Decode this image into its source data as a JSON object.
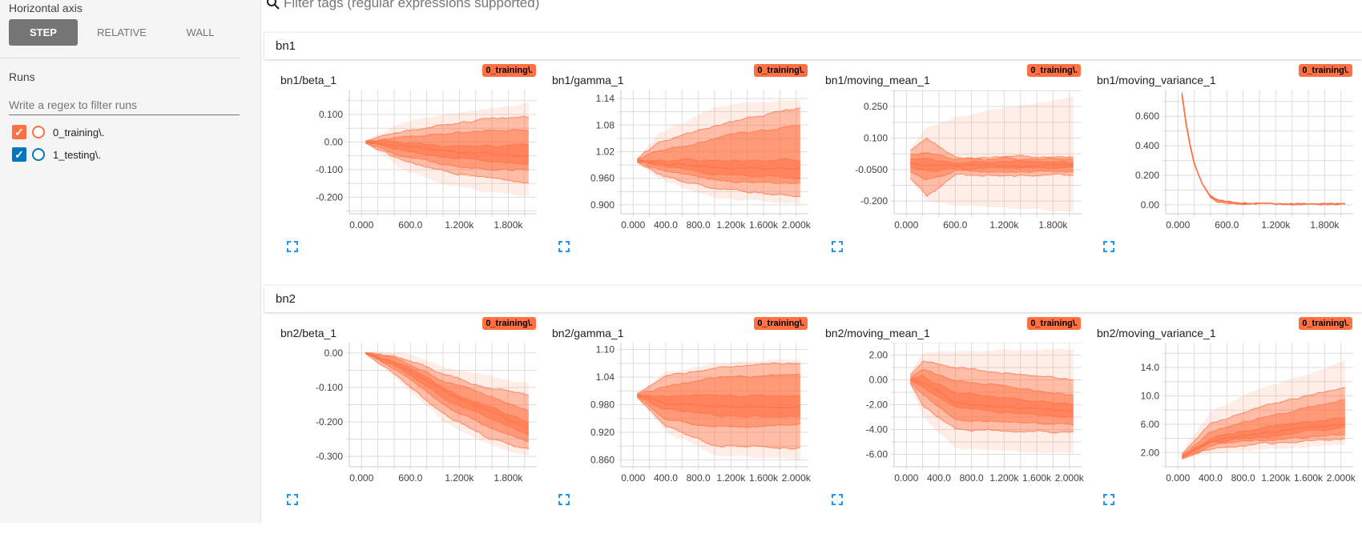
{
  "sidebar": {
    "horizontal_axis_label": "Horizontal axis",
    "axis_buttons": [
      "STEP",
      "RELATIVE",
      "WALL"
    ],
    "active_axis": "STEP",
    "runs_label": "Runs",
    "run_filter_placeholder": "Write a regex to filter runs",
    "runs": [
      {
        "name": "0_training\\.",
        "color": "#ff7043",
        "checked": true
      },
      {
        "name": "1_testing\\.",
        "color": "#0277bd",
        "checked": true
      }
    ]
  },
  "filter": {
    "placeholder": "Filter tags (regular expressions supported)",
    "icon": "search-icon"
  },
  "colors": {
    "series": "#ff7043",
    "expand_icon": "#2196f3"
  },
  "sections": [
    {
      "name": "bn1",
      "charts": [
        {
          "title": "bn1/beta_1",
          "run": "0_training\\.",
          "type": "distribution",
          "xlim": [
            -150,
            2150
          ],
          "ylim": [
            -0.26,
            0.19
          ],
          "yticks": [
            0.1,
            0,
            -0.1,
            -0.2
          ],
          "ytick_labels": [
            "0.100",
            "0.00",
            "-0.100",
            "-0.200"
          ],
          "xticks": [
            0,
            600,
            1200,
            1800
          ],
          "xtick_labels": [
            "0.000",
            "600.0",
            "1.200k",
            "1.800k"
          ],
          "steps": [
            50,
            500,
            1000,
            1500,
            2050
          ],
          "percentiles": [
            [
              -0.006,
              -0.004,
              -0.003,
              -0.001,
              0,
              0.001,
              0.003,
              0.004,
              0.006
            ],
            [
              -0.1,
              -0.07,
              -0.05,
              -0.03,
              -0.015,
              0,
              0.02,
              0.04,
              0.07
            ],
            [
              -0.15,
              -0.11,
              -0.08,
              -0.055,
              -0.03,
              -0.01,
              0.03,
              0.06,
              0.1
            ],
            [
              -0.18,
              -0.13,
              -0.1,
              -0.07,
              -0.04,
              -0.015,
              0.04,
              0.08,
              0.12
            ],
            [
              -0.2,
              -0.15,
              -0.1,
              -0.08,
              -0.05,
              -0.01,
              0.04,
              0.09,
              0.14
            ]
          ]
        },
        {
          "title": "bn1/gamma_1",
          "run": "0_training\\.",
          "type": "distribution",
          "xlim": [
            -150,
            2150
          ],
          "ylim": [
            0.88,
            1.16
          ],
          "yticks": [
            1.14,
            1.08,
            1.02,
            0.96,
            0.9
          ],
          "ytick_labels": [
            "1.14",
            "1.08",
            "1.02",
            "0.960",
            "0.900"
          ],
          "xticks": [
            0,
            400,
            800,
            1200,
            1600,
            2000
          ],
          "xtick_labels": [
            "0.000",
            "400.0",
            "800.0",
            "1.200k",
            "1.600k",
            "2.000k"
          ],
          "steps": [
            50,
            300,
            1000,
            2050
          ],
          "percentiles": [
            [
              0.995,
              0.996,
              0.997,
              0.999,
              1,
              1.001,
              1.003,
              1.004,
              1.005
            ],
            [
              0.96,
              0.97,
              0.98,
              0.99,
              0.995,
              1,
              1.02,
              1.04,
              1.06
            ],
            [
              0.915,
              0.935,
              0.955,
              0.97,
              0.985,
              1,
              1.05,
              1.08,
              1.12
            ],
            [
              0.9,
              0.92,
              0.95,
              0.96,
              0.98,
              1,
              1.08,
              1.12,
              1.14
            ]
          ]
        },
        {
          "title": "bn1/moving_mean_1",
          "run": "0_training\\.",
          "type": "distribution",
          "xlim": [
            -150,
            2150
          ],
          "ylim": [
            -0.26,
            0.33
          ],
          "yticks": [
            0.25,
            0.1,
            -0.05,
            -0.2
          ],
          "ytick_labels": [
            "0.250",
            "0.100",
            "-0.0500",
            "-0.200"
          ],
          "xticks": [
            0,
            600,
            1200,
            1800
          ],
          "xtick_labels": [
            "0.000",
            "600.0",
            "1.200k",
            "1.800k"
          ],
          "steps": [
            50,
            250,
            600,
            2050
          ],
          "percentiles": [
            [
              -0.1,
              -0.09,
              -0.06,
              -0.04,
              -0.02,
              0,
              0.02,
              0.04,
              0.05
            ],
            [
              -0.2,
              -0.18,
              -0.1,
              -0.06,
              -0.03,
              0,
              0.03,
              0.1,
              0.15
            ],
            [
              -0.22,
              -0.08,
              -0.06,
              -0.045,
              -0.03,
              -0.015,
              0,
              0.01,
              0.2
            ],
            [
              -0.25,
              -0.08,
              -0.06,
              -0.045,
              -0.03,
              -0.015,
              0,
              0.01,
              0.3
            ]
          ]
        },
        {
          "title": "bn1/moving_variance_1",
          "run": "0_training\\.",
          "type": "distribution",
          "xlim": [
            -150,
            2150
          ],
          "ylim": [
            -0.06,
            0.78
          ],
          "yticks": [
            0.6,
            0.4,
            0.2,
            0
          ],
          "ytick_labels": [
            "0.600",
            "0.400",
            "0.200",
            "0.00"
          ],
          "xticks": [
            0,
            600,
            1200,
            1800
          ],
          "xtick_labels": [
            "0.000",
            "600.0",
            "1.200k",
            "1.800k"
          ],
          "steps": [
            50,
            100,
            150,
            200,
            300,
            400,
            500,
            700,
            2050
          ],
          "percentiles": [
            0.75,
            0.55,
            0.4,
            0.28,
            0.13,
            0.05,
            0.02,
            0.005,
            0.003
          ]
        }
      ]
    },
    {
      "name": "bn2",
      "charts": [
        {
          "title": "bn2/beta_1",
          "run": "0_training\\.",
          "type": "distribution",
          "xlim": [
            -150,
            2150
          ],
          "ylim": [
            -0.33,
            0.03
          ],
          "yticks": [
            0,
            -0.1,
            -0.2,
            -0.3
          ],
          "ytick_labels": [
            "0.00",
            "-0.100",
            "-0.200",
            "-0.300"
          ],
          "xticks": [
            0,
            600,
            1200,
            1800
          ],
          "xtick_labels": [
            "0.000",
            "600.0",
            "1.200k",
            "1.800k"
          ],
          "steps": [
            50,
            500,
            1000,
            1500,
            2050
          ],
          "percentiles": [
            [
              -0.003,
              -0.002,
              -0.001,
              0,
              0,
              0,
              0.001,
              0.002,
              0.003
            ],
            [
              -0.09,
              -0.08,
              -0.06,
              -0.05,
              -0.04,
              -0.03,
              -0.02,
              -0.015,
              0
            ],
            [
              -0.2,
              -0.18,
              -0.15,
              -0.13,
              -0.11,
              -0.1,
              -0.08,
              -0.06,
              -0.04
            ],
            [
              -0.26,
              -0.24,
              -0.21,
              -0.18,
              -0.16,
              -0.15,
              -0.12,
              -0.1,
              -0.06
            ],
            [
              -0.3,
              -0.28,
              -0.26,
              -0.24,
              -0.22,
              -0.2,
              -0.17,
              -0.12,
              -0.09
            ]
          ]
        },
        {
          "title": "bn2/gamma_1",
          "run": "0_training\\.",
          "type": "distribution",
          "xlim": [
            -150,
            2150
          ],
          "ylim": [
            0.845,
            1.115
          ],
          "yticks": [
            1.1,
            1.04,
            0.98,
            0.92,
            0.86
          ],
          "ytick_labels": [
            "1.10",
            "1.04",
            "0.980",
            "0.920",
            "0.860"
          ],
          "xticks": [
            0,
            400,
            800,
            1200,
            1600,
            2000
          ],
          "xtick_labels": [
            "0.000",
            "400.0",
            "800.0",
            "1.200k",
            "1.600k",
            "2.000k"
          ],
          "steps": [
            50,
            400,
            1000,
            2050
          ],
          "percentiles": [
            [
              0.995,
              0.996,
              0.997,
              0.999,
              1,
              1.001,
              1.003,
              1.004,
              1.005
            ],
            [
              0.92,
              0.935,
              0.95,
              0.97,
              0.985,
              1,
              1.02,
              1.04,
              1.05
            ],
            [
              0.87,
              0.89,
              0.93,
              0.955,
              0.975,
              1,
              1.04,
              1.06,
              1.07
            ],
            [
              0.86,
              0.885,
              0.935,
              0.955,
              0.975,
              1,
              1.045,
              1.07,
              1.08
            ]
          ]
        },
        {
          "title": "bn2/moving_mean_1",
          "run": "0_training\\.",
          "type": "distribution",
          "xlim": [
            -150,
            2150
          ],
          "ylim": [
            -7,
            3
          ],
          "yticks": [
            2,
            0,
            -2,
            -4,
            -6
          ],
          "ytick_labels": [
            "2.00",
            "0.00",
            "-2.00",
            "-4.00",
            "-6.00"
          ],
          "xticks": [
            0,
            400,
            800,
            1200,
            1600,
            2000
          ],
          "xtick_labels": [
            "0.000",
            "400.0",
            "800.0",
            "1.200k",
            "1.600k",
            "2.000k"
          ],
          "steps": [
            50,
            200,
            600,
            2050
          ],
          "percentiles": [
            [
              -0.5,
              -0.3,
              -0.2,
              -0.1,
              0,
              0.1,
              0.2,
              0.4,
              0.6
            ],
            [
              -3,
              -2,
              -1.2,
              -0.6,
              -0.2,
              0.3,
              0.9,
              1.5,
              2.2
            ],
            [
              -5.5,
              -4,
              -3.2,
              -2.3,
              -1.8,
              -1,
              0,
              1,
              2.3
            ],
            [
              -6,
              -4.2,
              -3.6,
              -3,
              -2.6,
              -2,
              -1.2,
              0,
              2.5
            ]
          ]
        },
        {
          "title": "bn2/moving_variance_1",
          "run": "0_training\\.",
          "type": "distribution",
          "xlim": [
            -150,
            2150
          ],
          "ylim": [
            0,
            17.5
          ],
          "yticks": [
            14,
            10,
            6,
            2
          ],
          "ytick_labels": [
            "14.0",
            "10.0",
            "6.00",
            "2.00"
          ],
          "xticks": [
            0,
            400,
            800,
            1200,
            1600,
            2000
          ],
          "xtick_labels": [
            "0.000",
            "400.0",
            "800.0",
            "1.200k",
            "1.600k",
            "2.000k"
          ],
          "steps": [
            50,
            400,
            1000,
            2050
          ],
          "percentiles": [
            [
              1,
              1.1,
              1.2,
              1.3,
              1.4,
              1.5,
              1.6,
              1.8,
              2
            ],
            [
              1.8,
              2.5,
              3,
              3.3,
              3.6,
              4,
              5,
              6,
              8
            ],
            [
              2.5,
              3.2,
              3.8,
              4.3,
              4.8,
              5.5,
              6.8,
              8.5,
              11
            ],
            [
              3,
              4,
              4.5,
              5.5,
              6,
              7,
              9.5,
              11.2,
              15
            ]
          ]
        }
      ]
    }
  ]
}
